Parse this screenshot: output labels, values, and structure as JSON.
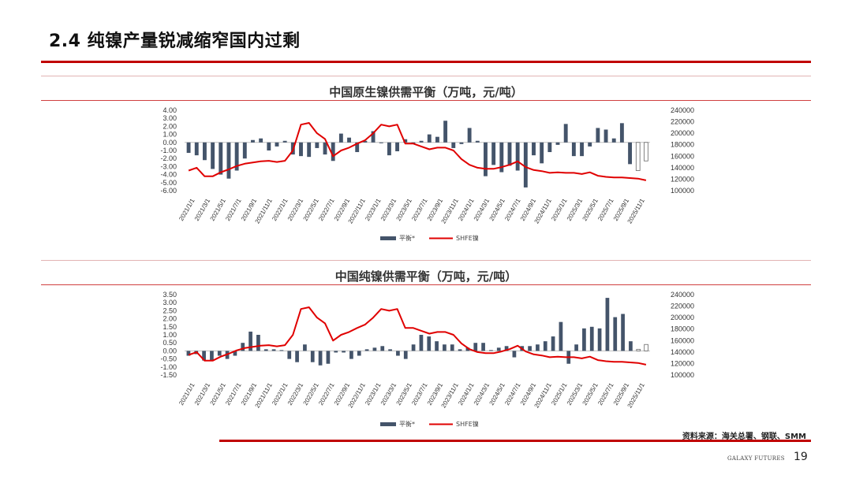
{
  "page": {
    "title": "2.4 纯镍产量锐减缩窄国内过剩",
    "source": "资料来源：海关总署、钢联、SMM",
    "brand": "GALAXY FUTURES",
    "page_number": "19"
  },
  "colors": {
    "bar": "#44546a",
    "bar_hollow_stroke": "#666666",
    "line": "#e00000",
    "rule": "#c00000"
  },
  "chart_data": [
    {
      "type": "bar+line",
      "title": "中国原生镍供需平衡（万吨，元/吨）",
      "left_ticks": [
        "4.00",
        "3.00",
        "2.00",
        "1.00",
        "0.00",
        "-1.00",
        "-2.00",
        "-3.00",
        "-4.00",
        "-5.00",
        "-6.00"
      ],
      "right_ticks": [
        "240000",
        "220000",
        "200000",
        "180000",
        "160000",
        "140000",
        "120000",
        "100000"
      ],
      "ylim": [
        -6,
        4
      ],
      "y2lim": [
        100000,
        240000
      ],
      "x_tick_labels": [
        "2021/1/1",
        "2021/3/1",
        "2021/5/1",
        "2021/7/1",
        "2021/9/1",
        "2021/11/1",
        "2022/1/1",
        "2022/3/1",
        "2022/5/1",
        "2022/7/1",
        "2022/9/1",
        "2022/11/1",
        "2023/1/1",
        "2023/3/1",
        "2023/5/1",
        "2023/7/1",
        "2023/9/1",
        "2023/11/1",
        "2024/1/1",
        "2024/3/1",
        "2024/5/1",
        "2024/7/1",
        "2024/9/1",
        "2024/11/1",
        "2025/1/1",
        "2025/3/1",
        "2025/5/1",
        "2025/7/1",
        "2025/9/1",
        "2025/11/1"
      ],
      "series": [
        {
          "name": "平衡*",
          "kind": "bar",
          "values": [
            -1.3,
            -1.6,
            -2.2,
            -3.3,
            -4,
            -4.5,
            -3.5,
            -2,
            0.3,
            0.5,
            -1,
            -0.5,
            0.2,
            -1.5,
            -1.7,
            -1.8,
            -0.7,
            -1.5,
            -2.3,
            1.1,
            0.6,
            -1.2,
            0.2,
            1.4,
            -0.1,
            -1.6,
            -1.1,
            0.4,
            -0.2,
            0.2,
            1,
            0.7,
            2.7,
            -0.7,
            -0.2,
            1.8,
            0.2,
            -4.2,
            -2.8,
            -3.7,
            -2.9,
            -3.5,
            -5.6,
            -1.6,
            -2.6,
            -1.2,
            -0.3,
            2.3,
            -1.7,
            -1.7,
            -0.5,
            1.8,
            1.6,
            0.5,
            2.4,
            -2.7,
            -3.5,
            -2.3
          ],
          "hollow_last": 2
        },
        {
          "name": "SHFE镍",
          "kind": "line",
          "values": [
            135000,
            140000,
            125000,
            125000,
            132000,
            137000,
            143000,
            147000,
            149000,
            151000,
            152000,
            150000,
            152000,
            170000,
            215000,
            218000,
            200000,
            190000,
            160000,
            170000,
            175000,
            182000,
            188000,
            200000,
            215000,
            212000,
            215000,
            182000,
            182000,
            177000,
            172000,
            175000,
            175000,
            170000,
            155000,
            145000,
            140000,
            138000,
            138000,
            141000,
            145000,
            151000,
            141000,
            136000,
            134000,
            131000,
            132000,
            131000,
            131000,
            129000,
            132000,
            126000,
            124000,
            123000,
            123000,
            122000,
            121000,
            118000
          ]
        }
      ]
    },
    {
      "type": "bar+line",
      "title": "中国纯镍供需平衡（万吨，元/吨）",
      "left_ticks": [
        "3.50",
        "3.00",
        "2.50",
        "2.00",
        "1.50",
        "1.00",
        "0.50",
        "0.00",
        "-0.50",
        "-1.00",
        "-1.50"
      ],
      "right_ticks": [
        "240000",
        "220000",
        "200000",
        "180000",
        "160000",
        "140000",
        "120000",
        "100000"
      ],
      "ylim": [
        -1.5,
        3.5
      ],
      "y2lim": [
        100000,
        240000
      ],
      "x_tick_labels": [
        "2021/1/1",
        "2021/3/1",
        "2021/5/1",
        "2021/7/1",
        "2021/9/1",
        "2021/11/1",
        "2022/1/1",
        "2022/3/1",
        "2022/5/1",
        "2022/7/1",
        "2022/9/1",
        "2022/11/1",
        "2023/1/1",
        "2023/3/1",
        "2023/5/1",
        "2023/7/1",
        "2023/9/1",
        "2023/11/1",
        "2024/1/1",
        "2024/3/1",
        "2024/5/1",
        "2024/7/1",
        "2024/9/1",
        "2024/11/1",
        "2025/1/1",
        "2025/3/1",
        "2025/5/1",
        "2025/7/1",
        "2025/9/1",
        "2025/11/1"
      ],
      "series": [
        {
          "name": "平衡*",
          "kind": "bar",
          "values": [
            -0.3,
            -0.2,
            -0.6,
            -0.6,
            -0.3,
            -0.5,
            -0.3,
            0.5,
            1.2,
            1,
            0.1,
            0.1,
            0.05,
            -0.5,
            -0.7,
            0.4,
            -0.7,
            -0.9,
            -0.8,
            -0.1,
            -0.1,
            -0.5,
            -0.3,
            0.1,
            0.2,
            0.3,
            0.1,
            -0.3,
            -0.5,
            0.4,
            1,
            0.9,
            0.6,
            0.4,
            0.4,
            0.1,
            0.2,
            0.5,
            0.5,
            0.05,
            0.2,
            0.3,
            -0.4,
            0.3,
            0.3,
            0.4,
            0.6,
            0.9,
            1.8,
            -0.8,
            0.4,
            1.4,
            1.5,
            1.4,
            3.3,
            2.1,
            2.3,
            0.6,
            0.1,
            0.4
          ],
          "hollow_last": 2
        },
        {
          "name": "SHFE镍",
          "kind": "line",
          "values": [
            135000,
            140000,
            125000,
            125000,
            132000,
            137000,
            143000,
            147000,
            149000,
            151000,
            152000,
            150000,
            152000,
            170000,
            215000,
            218000,
            200000,
            190000,
            160000,
            170000,
            175000,
            182000,
            188000,
            200000,
            215000,
            212000,
            215000,
            182000,
            182000,
            177000,
            172000,
            175000,
            175000,
            170000,
            155000,
            145000,
            140000,
            138000,
            138000,
            141000,
            145000,
            151000,
            141000,
            136000,
            134000,
            131000,
            132000,
            131000,
            131000,
            129000,
            132000,
            126000,
            124000,
            123000,
            123000,
            122000,
            121000,
            118000
          ]
        }
      ]
    }
  ]
}
